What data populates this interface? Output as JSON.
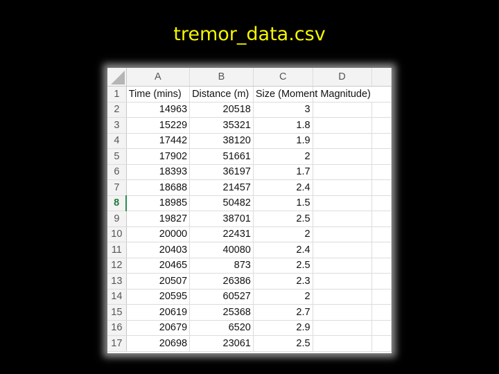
{
  "slide": {
    "title": "tremor_data.csv"
  },
  "spreadsheet": {
    "columns": [
      "A",
      "B",
      "C",
      "D"
    ],
    "header_row": {
      "row_number": "1",
      "cells": [
        "Time (mins)",
        "Distance (m)",
        "Size (Moment Magnitude)",
        ""
      ]
    },
    "rows": [
      {
        "n": "2",
        "a": "14963",
        "b": "20518",
        "c": "3"
      },
      {
        "n": "3",
        "a": "15229",
        "b": "35321",
        "c": "1.8"
      },
      {
        "n": "4",
        "a": "17442",
        "b": "38120",
        "c": "1.9"
      },
      {
        "n": "5",
        "a": "17902",
        "b": "51661",
        "c": "2"
      },
      {
        "n": "6",
        "a": "18393",
        "b": "36197",
        "c": "1.7"
      },
      {
        "n": "7",
        "a": "18688",
        "b": "21457",
        "c": "2.4"
      },
      {
        "n": "8",
        "a": "18985",
        "b": "50482",
        "c": "1.5"
      },
      {
        "n": "9",
        "a": "19827",
        "b": "38701",
        "c": "2.5"
      },
      {
        "n": "10",
        "a": "20000",
        "b": "22431",
        "c": "2"
      },
      {
        "n": "11",
        "a": "20403",
        "b": "40080",
        "c": "2.4"
      },
      {
        "n": "12",
        "a": "20465",
        "b": "873",
        "c": "2.5"
      },
      {
        "n": "13",
        "a": "20507",
        "b": "26386",
        "c": "2.3"
      },
      {
        "n": "14",
        "a": "20595",
        "b": "60527",
        "c": "2"
      },
      {
        "n": "15",
        "a": "20619",
        "b": "25368",
        "c": "2.7"
      },
      {
        "n": "16",
        "a": "20679",
        "b": "6520",
        "c": "2.9"
      },
      {
        "n": "17",
        "a": "20698",
        "b": "23061",
        "c": "2.5"
      }
    ],
    "active_row": "8",
    "colors": {
      "active_row_header": "#1f7a3a",
      "title_text": "#f5f500"
    }
  }
}
